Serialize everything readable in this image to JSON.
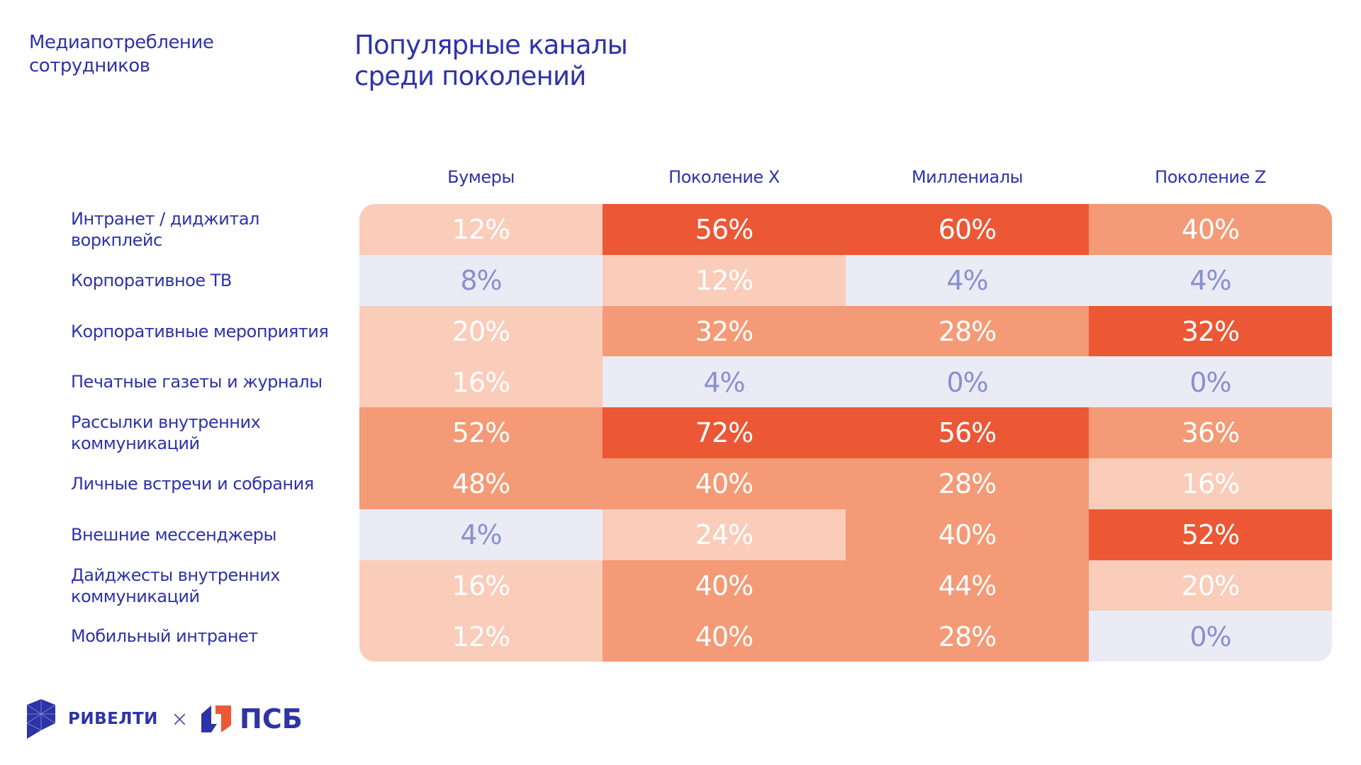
{
  "section_title": "Медиапотребление сотрудников",
  "main_title": "Популярные каналы среди поколений",
  "colors": {
    "text": "#2E33A8",
    "dark": "#EC5736",
    "mid": "#F49A76",
    "light": "#FACCBA",
    "none": "#EBEBF5",
    "none_text": "#8A8FD0"
  },
  "chart_data": {
    "type": "heatmap",
    "columns": [
      "Бумеры",
      "Поколение X",
      "Миллениалы",
      "Поколение Z"
    ],
    "rows": [
      {
        "label": "Интранет / диджитал воркплейс",
        "values": [
          "12%",
          "56%",
          "60%",
          "40%"
        ],
        "levels": [
          "light",
          "dark",
          "dark",
          "mid"
        ]
      },
      {
        "label": "Корпоративное ТВ",
        "values": [
          "8%",
          "12%",
          "4%",
          "4%"
        ],
        "levels": [
          "none",
          "light",
          "none",
          "none"
        ]
      },
      {
        "label": "Корпоративные мероприятия",
        "values": [
          "20%",
          "32%",
          "28%",
          "32%"
        ],
        "levels": [
          "light",
          "mid",
          "mid",
          "dark"
        ]
      },
      {
        "label": "Печатные газеты и журналы",
        "values": [
          "16%",
          "4%",
          "0%",
          "0%"
        ],
        "levels": [
          "light",
          "none",
          "none",
          "none"
        ]
      },
      {
        "label": "Рассылки внутренних коммуникаций",
        "values": [
          "52%",
          "72%",
          "56%",
          "36%"
        ],
        "levels": [
          "mid",
          "dark",
          "dark",
          "mid"
        ]
      },
      {
        "label": "Личные встречи и собрания",
        "values": [
          "48%",
          "40%",
          "28%",
          "16%"
        ],
        "levels": [
          "mid",
          "mid",
          "mid",
          "light"
        ]
      },
      {
        "label": "Внешние мессенджеры",
        "values": [
          "4%",
          "24%",
          "40%",
          "52%"
        ],
        "levels": [
          "none",
          "light",
          "mid",
          "dark"
        ]
      },
      {
        "label": "Дайджесты внутренних коммуникаций",
        "values": [
          "16%",
          "40%",
          "44%",
          "20%"
        ],
        "levels": [
          "light",
          "mid",
          "mid",
          "light"
        ]
      },
      {
        "label": "Мобильный интранет",
        "values": [
          "12%",
          "40%",
          "28%",
          "0%"
        ],
        "levels": [
          "light",
          "mid",
          "mid",
          "none"
        ]
      }
    ]
  },
  "footer": {
    "brand1": "РИВЕЛТИ",
    "separator": "×",
    "brand2": "ПСБ"
  }
}
